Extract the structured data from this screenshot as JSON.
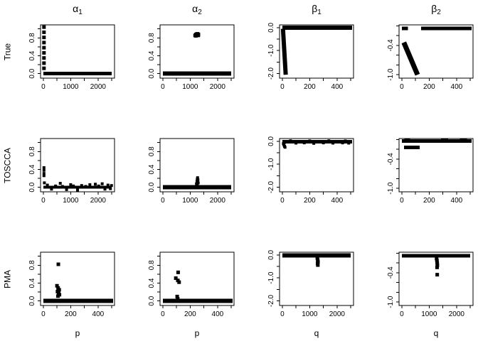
{
  "figure": {
    "background": "#ffffff",
    "foreground": "#000000",
    "marker": "filled-square",
    "rows": [
      "True",
      "TOSCCA",
      "PMA"
    ],
    "columns": [
      "α1",
      "α2",
      "β1",
      "β2"
    ]
  },
  "chart_data": [
    {
      "type": "scatter",
      "row": "True",
      "col": "alpha1",
      "title_base": "α",
      "title_sub": "1",
      "row_label": "True",
      "xlim": [
        -100,
        2600
      ],
      "ylim": [
        -0.1,
        1.09
      ],
      "xticks": [
        {
          "v": 0,
          "l": "0"
        },
        {
          "v": 500,
          "l": ""
        },
        {
          "v": 1000,
          "l": "1000"
        },
        {
          "v": 1500,
          "l": ""
        },
        {
          "v": 2000,
          "l": "2000"
        },
        {
          "v": 2500,
          "l": ""
        }
      ],
      "yticks": [
        {
          "v": 0.0,
          "l": "0.0"
        },
        {
          "v": 0.2,
          "l": ""
        },
        {
          "v": 0.4,
          "l": "0.4"
        },
        {
          "v": 0.6,
          "l": ""
        },
        {
          "v": 0.8,
          "l": "0.8"
        },
        {
          "v": 1.0,
          "l": ""
        }
      ],
      "segments": [
        [
          0,
          0.005,
          2500,
          0.005,
          5
        ]
      ],
      "point_size": 5,
      "points": [
        [
          25,
          1.04
        ],
        [
          25,
          0.925
        ],
        [
          25,
          0.81
        ],
        [
          25,
          0.695
        ],
        [
          25,
          0.58
        ],
        [
          25,
          0.465
        ],
        [
          25,
          0.35
        ],
        [
          25,
          0.235
        ],
        [
          25,
          0.12
        ]
      ]
    },
    {
      "type": "scatter",
      "row": "True",
      "col": "alpha2",
      "title_base": "α",
      "title_sub": "2",
      "xlim": [
        -100,
        2600
      ],
      "ylim": [
        -0.1,
        1.09
      ],
      "xticks": [
        {
          "v": 0,
          "l": "0"
        },
        {
          "v": 500,
          "l": ""
        },
        {
          "v": 1000,
          "l": "1000"
        },
        {
          "v": 1500,
          "l": ""
        },
        {
          "v": 2000,
          "l": "2000"
        },
        {
          "v": 2500,
          "l": ""
        }
      ],
      "yticks": [
        {
          "v": 0.0,
          "l": "0.0"
        },
        {
          "v": 0.2,
          "l": ""
        },
        {
          "v": 0.4,
          "l": "0.4"
        },
        {
          "v": 0.6,
          "l": ""
        },
        {
          "v": 0.8,
          "l": "0.8"
        },
        {
          "v": 1.0,
          "l": ""
        }
      ],
      "segments": [
        [
          0,
          0.005,
          2500,
          0.005,
          6
        ]
      ],
      "point_size": 5,
      "points": [
        [
          1180,
          0.855
        ],
        [
          1210,
          0.875
        ],
        [
          1240,
          0.885
        ],
        [
          1270,
          0.89
        ],
        [
          1300,
          0.875
        ],
        [
          1235,
          0.855
        ],
        [
          1265,
          0.86
        ],
        [
          1205,
          0.845
        ],
        [
          1295,
          0.855
        ]
      ]
    },
    {
      "type": "scatter",
      "row": "True",
      "col": "beta1",
      "title_base": "β",
      "title_sub": "1",
      "xlim": [
        -20,
        520
      ],
      "ylim": [
        -2.2,
        0.12
      ],
      "xticks": [
        {
          "v": 0,
          "l": "0"
        },
        {
          "v": 100,
          "l": ""
        },
        {
          "v": 200,
          "l": "200"
        },
        {
          "v": 300,
          "l": ""
        },
        {
          "v": 400,
          "l": "400"
        },
        {
          "v": 500,
          "l": ""
        }
      ],
      "yticks": [
        {
          "v": 0.0,
          "l": "0.0"
        },
        {
          "v": -0.5,
          "l": ""
        },
        {
          "v": -1.0,
          "l": "-1.0"
        },
        {
          "v": -1.5,
          "l": ""
        },
        {
          "v": -2.0,
          "l": "-2.0"
        }
      ],
      "segments": [
        [
          0,
          0.0,
          510,
          0.0,
          6
        ],
        [
          5,
          -0.05,
          25,
          -2.05,
          6
        ]
      ],
      "point_size": 5,
      "points": []
    },
    {
      "type": "scatter",
      "row": "True",
      "col": "beta2",
      "title_base": "β",
      "title_sub": "2",
      "xlim": [
        -20,
        520
      ],
      "ylim": [
        -1.07,
        0.02
      ],
      "xticks": [
        {
          "v": 0,
          "l": "0"
        },
        {
          "v": 100,
          "l": ""
        },
        {
          "v": 200,
          "l": "200"
        },
        {
          "v": 300,
          "l": ""
        },
        {
          "v": 400,
          "l": "400"
        },
        {
          "v": 500,
          "l": ""
        }
      ],
      "yticks": [
        {
          "v": 0.0,
          "l": ""
        },
        {
          "v": -0.2,
          "l": ""
        },
        {
          "v": -0.4,
          "l": "-0.4"
        },
        {
          "v": -0.6,
          "l": ""
        },
        {
          "v": -0.8,
          "l": ""
        },
        {
          "v": -1.0,
          "l": "-1.0"
        }
      ],
      "segments": [
        [
          0,
          -0.05,
          45,
          -0.05,
          5
        ],
        [
          140,
          -0.05,
          510,
          -0.05,
          5
        ],
        [
          15,
          -0.34,
          115,
          -1.0,
          7
        ]
      ],
      "point_size": 5,
      "points": []
    },
    {
      "type": "scatter",
      "row": "TOSCCA",
      "col": "alpha1",
      "row_label": "TOSCCA",
      "xlim": [
        -100,
        2600
      ],
      "ylim": [
        -0.1,
        1.09
      ],
      "xticks": [
        {
          "v": 0,
          "l": "0"
        },
        {
          "v": 500,
          "l": ""
        },
        {
          "v": 1000,
          "l": "1000"
        },
        {
          "v": 1500,
          "l": ""
        },
        {
          "v": 2000,
          "l": "2000"
        },
        {
          "v": 2500,
          "l": ""
        }
      ],
      "yticks": [
        {
          "v": 0.0,
          "l": "0.0"
        },
        {
          "v": 0.2,
          "l": ""
        },
        {
          "v": 0.4,
          "l": "0.4"
        },
        {
          "v": 0.6,
          "l": ""
        },
        {
          "v": 0.8,
          "l": "0.8"
        },
        {
          "v": 1.0,
          "l": ""
        }
      ],
      "segments": [
        [
          0,
          0.0,
          2500,
          0.0,
          4
        ]
      ],
      "point_size": 4,
      "points": [
        [
          25,
          0.44
        ],
        [
          25,
          0.38
        ],
        [
          25,
          0.31
        ],
        [
          25,
          0.26
        ],
        [
          40,
          0.1
        ],
        [
          150,
          0.05
        ],
        [
          300,
          -0.04
        ],
        [
          450,
          0.03
        ],
        [
          620,
          0.09
        ],
        [
          700,
          0.02
        ],
        [
          850,
          -0.05
        ],
        [
          1000,
          0.06
        ],
        [
          1100,
          0.03
        ],
        [
          1250,
          -0.06
        ],
        [
          1400,
          0.04
        ],
        [
          1550,
          0.02
        ],
        [
          1700,
          0.06
        ],
        [
          1900,
          0.07
        ],
        [
          2020,
          0.03
        ],
        [
          2150,
          0.08
        ],
        [
          2250,
          -0.04
        ],
        [
          2360,
          0.05
        ],
        [
          2450,
          -0.03
        ],
        [
          2490,
          0.04
        ]
      ]
    },
    {
      "type": "scatter",
      "row": "TOSCCA",
      "col": "alpha2",
      "xlim": [
        -100,
        2600
      ],
      "ylim": [
        -0.1,
        1.09
      ],
      "xticks": [
        {
          "v": 0,
          "l": "0"
        },
        {
          "v": 500,
          "l": ""
        },
        {
          "v": 1000,
          "l": "1000"
        },
        {
          "v": 1500,
          "l": ""
        },
        {
          "v": 2000,
          "l": "2000"
        },
        {
          "v": 2500,
          "l": ""
        }
      ],
      "yticks": [
        {
          "v": 0.0,
          "l": "0.0"
        },
        {
          "v": 0.2,
          "l": ""
        },
        {
          "v": 0.4,
          "l": "0.4"
        },
        {
          "v": 0.6,
          "l": ""
        },
        {
          "v": 0.8,
          "l": "0.8"
        },
        {
          "v": 1.0,
          "l": ""
        }
      ],
      "segments": [
        [
          0,
          0.005,
          2500,
          0.005,
          6
        ]
      ],
      "point_size": 4,
      "points": [
        [
          1230,
          0.08
        ],
        [
          1248,
          0.13
        ],
        [
          1258,
          0.18
        ],
        [
          1270,
          0.215
        ],
        [
          1283,
          0.17
        ],
        [
          1293,
          0.1
        ],
        [
          1260,
          0.05
        ],
        [
          1272,
          0.12
        ]
      ]
    },
    {
      "type": "scatter",
      "row": "TOSCCA",
      "col": "beta1",
      "xlim": [
        -20,
        520
      ],
      "ylim": [
        -2.2,
        0.12
      ],
      "xticks": [
        {
          "v": 0,
          "l": "0"
        },
        {
          "v": 100,
          "l": ""
        },
        {
          "v": 200,
          "l": "200"
        },
        {
          "v": 300,
          "l": ""
        },
        {
          "v": 400,
          "l": "400"
        },
        {
          "v": 500,
          "l": ""
        }
      ],
      "yticks": [
        {
          "v": 0.0,
          "l": "0.0"
        },
        {
          "v": -0.5,
          "l": ""
        },
        {
          "v": -1.0,
          "l": "-1.0"
        },
        {
          "v": -1.5,
          "l": ""
        },
        {
          "v": -2.0,
          "l": "-2.0"
        }
      ],
      "segments": [
        [
          0,
          -0.02,
          510,
          -0.02,
          5
        ]
      ],
      "point_size": 4,
      "points": [
        [
          8,
          -0.1
        ],
        [
          12,
          -0.16
        ],
        [
          16,
          -0.22
        ],
        [
          20,
          -0.26
        ],
        [
          14,
          -0.07
        ],
        [
          100,
          -0.08
        ],
        [
          160,
          -0.07
        ],
        [
          230,
          -0.09
        ],
        [
          300,
          -0.07
        ],
        [
          370,
          -0.08
        ],
        [
          440,
          -0.07
        ],
        [
          485,
          -0.08
        ],
        [
          60,
          0.02
        ],
        [
          200,
          0.015
        ],
        [
          340,
          0.02
        ],
        [
          460,
          0.015
        ]
      ]
    },
    {
      "type": "scatter",
      "row": "TOSCCA",
      "col": "beta2",
      "xlim": [
        -20,
        520
      ],
      "ylim": [
        -1.07,
        0.02
      ],
      "xticks": [
        {
          "v": 0,
          "l": "0"
        },
        {
          "v": 100,
          "l": ""
        },
        {
          "v": 200,
          "l": "200"
        },
        {
          "v": 300,
          "l": ""
        },
        {
          "v": 400,
          "l": "400"
        },
        {
          "v": 500,
          "l": ""
        }
      ],
      "yticks": [
        {
          "v": 0.0,
          "l": ""
        },
        {
          "v": -0.2,
          "l": ""
        },
        {
          "v": -0.4,
          "l": "-0.4"
        },
        {
          "v": -0.6,
          "l": ""
        },
        {
          "v": -0.8,
          "l": ""
        },
        {
          "v": -1.0,
          "l": "-1.0"
        }
      ],
      "segments": [
        [
          0,
          -0.03,
          510,
          -0.03,
          5
        ],
        [
          16,
          -0.16,
          130,
          -0.16,
          5
        ],
        [
          286,
          -0.015,
          338,
          -0.015,
          5
        ],
        [
          425,
          -0.015,
          477,
          -0.015,
          5
        ],
        [
          20,
          -0.005,
          60,
          -0.005,
          4
        ]
      ],
      "point_size": 4,
      "points": []
    },
    {
      "type": "scatter",
      "row": "PMA",
      "col": "alpha1",
      "row_label": "PMA",
      "xlab": "p",
      "xlim": [
        -20,
        520
      ],
      "ylim": [
        -0.1,
        1.09
      ],
      "xticks": [
        {
          "v": 0,
          "l": "0"
        },
        {
          "v": 100,
          "l": ""
        },
        {
          "v": 200,
          "l": "200"
        },
        {
          "v": 300,
          "l": ""
        },
        {
          "v": 400,
          "l": "400"
        },
        {
          "v": 500,
          "l": ""
        }
      ],
      "yticks": [
        {
          "v": 0.0,
          "l": "0.0"
        },
        {
          "v": 0.2,
          "l": ""
        },
        {
          "v": 0.4,
          "l": "0.4"
        },
        {
          "v": 0.6,
          "l": ""
        },
        {
          "v": 0.8,
          "l": "0.8"
        },
        {
          "v": 1.0,
          "l": ""
        }
      ],
      "segments": [
        [
          0,
          0.005,
          510,
          0.005,
          6
        ]
      ],
      "point_size": 5,
      "points": [
        [
          110,
          0.82
        ],
        [
          100,
          0.34
        ],
        [
          108,
          0.29
        ],
        [
          116,
          0.25
        ],
        [
          104,
          0.21
        ],
        [
          112,
          0.17
        ],
        [
          118,
          0.14
        ],
        [
          107,
          0.11
        ]
      ]
    },
    {
      "type": "scatter",
      "row": "PMA",
      "col": "alpha2",
      "xlab": "p",
      "xlim": [
        -20,
        520
      ],
      "ylim": [
        -0.1,
        1.09
      ],
      "xticks": [
        {
          "v": 0,
          "l": "0"
        },
        {
          "v": 100,
          "l": ""
        },
        {
          "v": 200,
          "l": "200"
        },
        {
          "v": 300,
          "l": ""
        },
        {
          "v": 400,
          "l": "400"
        },
        {
          "v": 500,
          "l": ""
        }
      ],
      "yticks": [
        {
          "v": 0.0,
          "l": "0.0"
        },
        {
          "v": 0.2,
          "l": ""
        },
        {
          "v": 0.4,
          "l": "0.4"
        },
        {
          "v": 0.6,
          "l": ""
        },
        {
          "v": 0.8,
          "l": "0.8"
        },
        {
          "v": 1.0,
          "l": ""
        }
      ],
      "segments": [
        [
          0,
          0.005,
          510,
          0.005,
          6
        ]
      ],
      "point_size": 5,
      "points": [
        [
          112,
          0.64
        ],
        [
          95,
          0.51
        ],
        [
          110,
          0.46
        ],
        [
          119,
          0.42
        ],
        [
          105,
          0.1
        ],
        [
          109,
          0.05
        ]
      ]
    },
    {
      "type": "scatter",
      "row": "PMA",
      "col": "beta1",
      "xlab": "q",
      "xlim": [
        -100,
        2600
      ],
      "ylim": [
        -2.2,
        0.12
      ],
      "xticks": [
        {
          "v": 0,
          "l": "0"
        },
        {
          "v": 500,
          "l": ""
        },
        {
          "v": 1000,
          "l": "1000"
        },
        {
          "v": 1500,
          "l": ""
        },
        {
          "v": 2000,
          "l": "2000"
        },
        {
          "v": 2500,
          "l": ""
        }
      ],
      "yticks": [
        {
          "v": 0.0,
          "l": "0.0"
        },
        {
          "v": -0.5,
          "l": ""
        },
        {
          "v": -1.0,
          "l": "-1.0"
        },
        {
          "v": -1.5,
          "l": ""
        },
        {
          "v": -2.0,
          "l": "-2.0"
        }
      ],
      "segments": [
        [
          0,
          -0.02,
          2500,
          -0.02,
          6
        ]
      ],
      "point_size": 5,
      "points": [
        [
          1280,
          -0.14
        ],
        [
          1293,
          -0.22
        ],
        [
          1303,
          -0.3
        ],
        [
          1288,
          -0.37
        ],
        [
          1298,
          -0.44
        ]
      ]
    },
    {
      "type": "scatter",
      "row": "PMA",
      "col": "beta2",
      "xlab": "q",
      "xlim": [
        -100,
        2600
      ],
      "ylim": [
        -1.07,
        0.02
      ],
      "xticks": [
        {
          "v": 0,
          "l": "0"
        },
        {
          "v": 500,
          "l": ""
        },
        {
          "v": 1000,
          "l": "1000"
        },
        {
          "v": 1500,
          "l": ""
        },
        {
          "v": 2000,
          "l": "2000"
        },
        {
          "v": 2500,
          "l": ""
        }
      ],
      "yticks": [
        {
          "v": 0.0,
          "l": ""
        },
        {
          "v": -0.2,
          "l": ""
        },
        {
          "v": -0.4,
          "l": "-0.4"
        },
        {
          "v": -0.6,
          "l": ""
        },
        {
          "v": -0.8,
          "l": ""
        },
        {
          "v": -1.0,
          "l": "-1.0"
        }
      ],
      "segments": [
        [
          0,
          -0.05,
          2500,
          -0.05,
          5
        ]
      ],
      "point_size": 5,
      "points": [
        [
          1270,
          -0.11
        ],
        [
          1283,
          -0.15
        ],
        [
          1292,
          -0.2
        ],
        [
          1298,
          -0.25
        ],
        [
          1288,
          -0.29
        ],
        [
          1293,
          -0.44
        ]
      ]
    }
  ]
}
